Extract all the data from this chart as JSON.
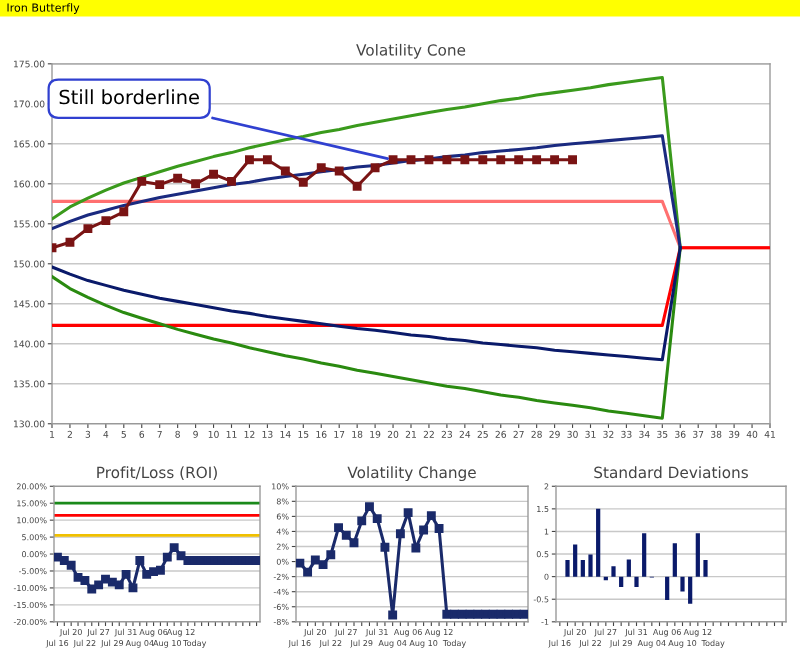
{
  "chart_data": [
    {
      "type": "line",
      "title": "Volatility Cone",
      "annotations": [
        "Iron Butterfly",
        {
          "text": "Still borderline",
          "x": "20",
          "y": 163
        }
      ],
      "categories": [
        "1",
        "2",
        "3",
        "4",
        "5",
        "6",
        "7",
        "8",
        "9",
        "10",
        "11",
        "12",
        "13",
        "14",
        "15",
        "16",
        "17",
        "18",
        "19",
        "20",
        "21",
        "22",
        "23",
        "24",
        "25",
        "26",
        "27",
        "28",
        "29",
        "30",
        "31",
        "32",
        "33",
        "34",
        "35",
        "36",
        "37",
        "38",
        "39",
        "40",
        "41"
      ],
      "ylim": [
        130,
        175
      ],
      "yticks": [
        {
          "value": 130,
          "label": "130.00"
        },
        {
          "value": 135,
          "label": "135.00"
        },
        {
          "value": 140,
          "label": "140.00"
        },
        {
          "value": 145,
          "label": "145.00"
        },
        {
          "value": 150,
          "label": "150.00"
        },
        {
          "value": 155,
          "label": "155.00"
        },
        {
          "value": 160,
          "label": "160.00"
        },
        {
          "value": 165,
          "label": "165.00"
        },
        {
          "value": 170,
          "label": "170.00"
        },
        {
          "value": 175,
          "label": "175.00"
        }
      ],
      "grid": "y",
      "series": [
        {
          "color": "#ff7070",
          "values": [
            157.8,
            157.8,
            157.8,
            157.8,
            157.8,
            157.8,
            157.8,
            157.8,
            157.8,
            157.8,
            157.8,
            157.8,
            157.8,
            157.8,
            157.8,
            157.8,
            157.8,
            157.8,
            157.8,
            157.8,
            157.8,
            157.8,
            157.8,
            157.8,
            157.8,
            157.8,
            157.8,
            157.8,
            157.8,
            157.8,
            157.8,
            157.8,
            157.8,
            157.8,
            157.8,
            152,
            152,
            152,
            152,
            152,
            152
          ]
        },
        {
          "color": "#ff0000",
          "values": [
            142.3,
            142.3,
            142.3,
            142.3,
            142.3,
            142.3,
            142.3,
            142.3,
            142.3,
            142.3,
            142.3,
            142.3,
            142.3,
            142.3,
            142.3,
            142.3,
            142.3,
            142.3,
            142.3,
            142.3,
            142.3,
            142.3,
            142.3,
            142.3,
            142.3,
            142.3,
            142.3,
            142.3,
            142.3,
            142.3,
            142.3,
            142.3,
            142.3,
            142.3,
            142.3,
            152,
            152,
            152,
            152,
            152,
            152
          ]
        },
        {
          "color": "#3a9a1c",
          "values": [
            155.6,
            157.1,
            158.2,
            159.2,
            160.1,
            160.8,
            161.5,
            162.2,
            162.8,
            163.4,
            163.9,
            164.5,
            165.0,
            165.5,
            165.9,
            166.4,
            166.8,
            167.3,
            167.7,
            168.1,
            168.5,
            168.9,
            169.3,
            169.6,
            170.0,
            170.4,
            170.7,
            171.1,
            171.4,
            171.7,
            172.0,
            172.4,
            172.7,
            173.0,
            173.3,
            152,
            null,
            null,
            null,
            null,
            null
          ]
        },
        {
          "color": "#2a8a10",
          "values": [
            148.4,
            146.9,
            145.8,
            144.8,
            143.9,
            143.2,
            142.5,
            141.8,
            141.2,
            140.6,
            140.1,
            139.5,
            139.0,
            138.5,
            138.1,
            137.6,
            137.2,
            136.7,
            136.3,
            135.9,
            135.5,
            135.1,
            134.7,
            134.4,
            134.0,
            133.6,
            133.3,
            132.9,
            132.6,
            132.3,
            132.0,
            131.6,
            131.3,
            131.0,
            130.7,
            152,
            null,
            null,
            null,
            null,
            null
          ]
        },
        {
          "color": "#1a2a80",
          "values": [
            154.4,
            155.3,
            156.1,
            156.7,
            157.3,
            157.8,
            158.3,
            158.7,
            159.1,
            159.5,
            159.9,
            160.2,
            160.6,
            160.9,
            161.2,
            161.5,
            161.8,
            162.1,
            162.3,
            162.6,
            162.9,
            163.1,
            163.4,
            163.6,
            163.9,
            164.1,
            164.3,
            164.5,
            164.8,
            165.0,
            165.2,
            165.4,
            165.6,
            165.8,
            166.0,
            152,
            null,
            null,
            null,
            null,
            null
          ]
        },
        {
          "color": "#0a1a6a",
          "values": [
            149.6,
            148.7,
            147.9,
            147.3,
            146.7,
            146.2,
            145.7,
            145.3,
            144.9,
            144.5,
            144.1,
            143.8,
            143.4,
            143.1,
            142.8,
            142.5,
            142.2,
            141.9,
            141.7,
            141.4,
            141.1,
            140.9,
            140.6,
            140.4,
            140.1,
            139.9,
            139.7,
            139.5,
            139.2,
            139.0,
            138.8,
            138.6,
            138.4,
            138.2,
            138.0,
            152,
            null,
            null,
            null,
            null,
            null
          ]
        },
        {
          "color": "#7a1414",
          "marker": "square",
          "values": [
            152,
            152.7,
            154.4,
            155.4,
            156.5,
            160.3,
            159.9,
            160.7,
            160,
            161.2,
            160.3,
            163,
            163,
            161.6,
            160.2,
            162,
            161.6,
            159.7,
            162,
            163,
            163,
            163,
            163,
            163,
            163,
            163,
            163,
            163,
            163,
            163,
            null,
            null,
            null,
            null,
            null,
            null,
            null,
            null,
            null,
            null,
            null
          ]
        }
      ]
    },
    {
      "type": "line",
      "title": "Profit/Loss (ROI)",
      "marker": "square",
      "categories": [
        "Jul 16",
        null,
        "Jul 20",
        null,
        "Jul 22",
        null,
        "Jul 27",
        null,
        "Jul 29",
        null,
        "Jul 31",
        null,
        "Aug 04",
        null,
        "Aug 06",
        null,
        "Aug 10",
        null,
        "Aug 12",
        null,
        "Today",
        null,
        null,
        null,
        null,
        null,
        null,
        null,
        null,
        null
      ],
      "ylim": [
        -20,
        20
      ],
      "yticks": [
        {
          "value": -20,
          "label": "-20.00%"
        },
        {
          "value": -15,
          "label": "-15.00%"
        },
        {
          "value": -10,
          "label": "-10.00%"
        },
        {
          "value": -5,
          "label": "-5.00%"
        },
        {
          "value": 0,
          "label": "0.00%"
        },
        {
          "value": 5,
          "label": "5.00%"
        },
        {
          "value": 10,
          "label": "10.00%"
        },
        {
          "value": 15,
          "label": "15.00%"
        },
        {
          "value": 20,
          "label": "20.00%"
        }
      ],
      "grid": "y",
      "ref_lines": [
        {
          "axis": "y",
          "value": 15,
          "color": "#1a8a1a"
        },
        {
          "axis": "y",
          "value": 11.4,
          "color": "#ff0000"
        },
        {
          "axis": "y",
          "value": 5.5,
          "color": "#f0c000"
        }
      ],
      "series": [
        {
          "color": "#1a2a6a",
          "values": [
            -0.9,
            -1.9,
            -3.3,
            -6.9,
            -7.8,
            -10.3,
            -9.1,
            -7.4,
            -8.3,
            -9.1,
            -6.0,
            -10.0,
            -1.9,
            -6.0,
            -5.2,
            -4.8,
            -0.9,
            1.9,
            -0.5,
            -1.9,
            -1.9,
            -1.9,
            -1.9,
            -1.9,
            -1.9,
            -1.9,
            -1.9,
            -1.9,
            -1.9,
            -1.9
          ]
        }
      ]
    },
    {
      "type": "line",
      "title": "Volatility Change",
      "marker": "square",
      "categories": [
        "Jul 16",
        null,
        "Jul 20",
        null,
        "Jul 22",
        null,
        "Jul 27",
        null,
        "Jul 29",
        null,
        "Jul 31",
        null,
        "Aug 04",
        null,
        "Aug 06",
        null,
        "Aug 10",
        null,
        "Aug 12",
        null,
        "Today",
        null,
        null,
        null,
        null,
        null,
        null,
        null,
        null,
        null
      ],
      "ylim": [
        -8,
        10
      ],
      "yticks": [
        {
          "value": -8,
          "label": "-8%"
        },
        {
          "value": -6,
          "label": "-6%"
        },
        {
          "value": -4,
          "label": "-4%"
        },
        {
          "value": -2,
          "label": "-2%"
        },
        {
          "value": 0,
          "label": "0%"
        },
        {
          "value": 2,
          "label": "2%"
        },
        {
          "value": 4,
          "label": "4%"
        },
        {
          "value": 6,
          "label": "6%"
        },
        {
          "value": 8,
          "label": "8%"
        },
        {
          "value": 10,
          "label": "10%"
        }
      ],
      "grid": "y",
      "series": [
        {
          "color": "#1a2a6a",
          "values": [
            -0.2,
            -1.4,
            0.2,
            -0.4,
            0.9,
            4.5,
            3.5,
            2.5,
            5.4,
            7.3,
            5.7,
            1.9,
            -7.1,
            3.7,
            6.5,
            1.8,
            4.2,
            6.1,
            4.4,
            -7.0,
            -7.0,
            -7.0,
            -7.0,
            -7.0,
            -7.0,
            -7.0,
            -7.0,
            -7.0,
            -7.0,
            -7.0
          ]
        }
      ]
    },
    {
      "type": "bar",
      "title": "Standard Deviations",
      "categories": [
        "Jul 16",
        null,
        "Jul 20",
        null,
        "Jul 22",
        null,
        "Jul 27",
        null,
        "Jul 29",
        null,
        "Jul 31",
        null,
        "Aug 04",
        null,
        "Aug 06",
        null,
        "Aug 10",
        null,
        "Aug 12",
        null,
        "Today",
        null,
        null,
        null,
        null,
        null,
        null,
        null,
        null,
        null
      ],
      "ylim": [
        -1,
        2
      ],
      "yticks": [
        -1,
        -0.5,
        0,
        0.5,
        1,
        1.5,
        2
      ],
      "grid": "y",
      "series": [
        {
          "color": "#0a1a6a",
          "values": [
            null,
            0.37,
            0.71,
            0.37,
            0.49,
            1.5,
            -0.08,
            0.23,
            -0.23,
            0.38,
            -0.23,
            0.96,
            -0.02,
            null,
            -0.52,
            0.74,
            -0.33,
            -0.6,
            0.96,
            0.37,
            null,
            null,
            null,
            null,
            null,
            null,
            null,
            null,
            null,
            null
          ]
        }
      ]
    }
  ]
}
